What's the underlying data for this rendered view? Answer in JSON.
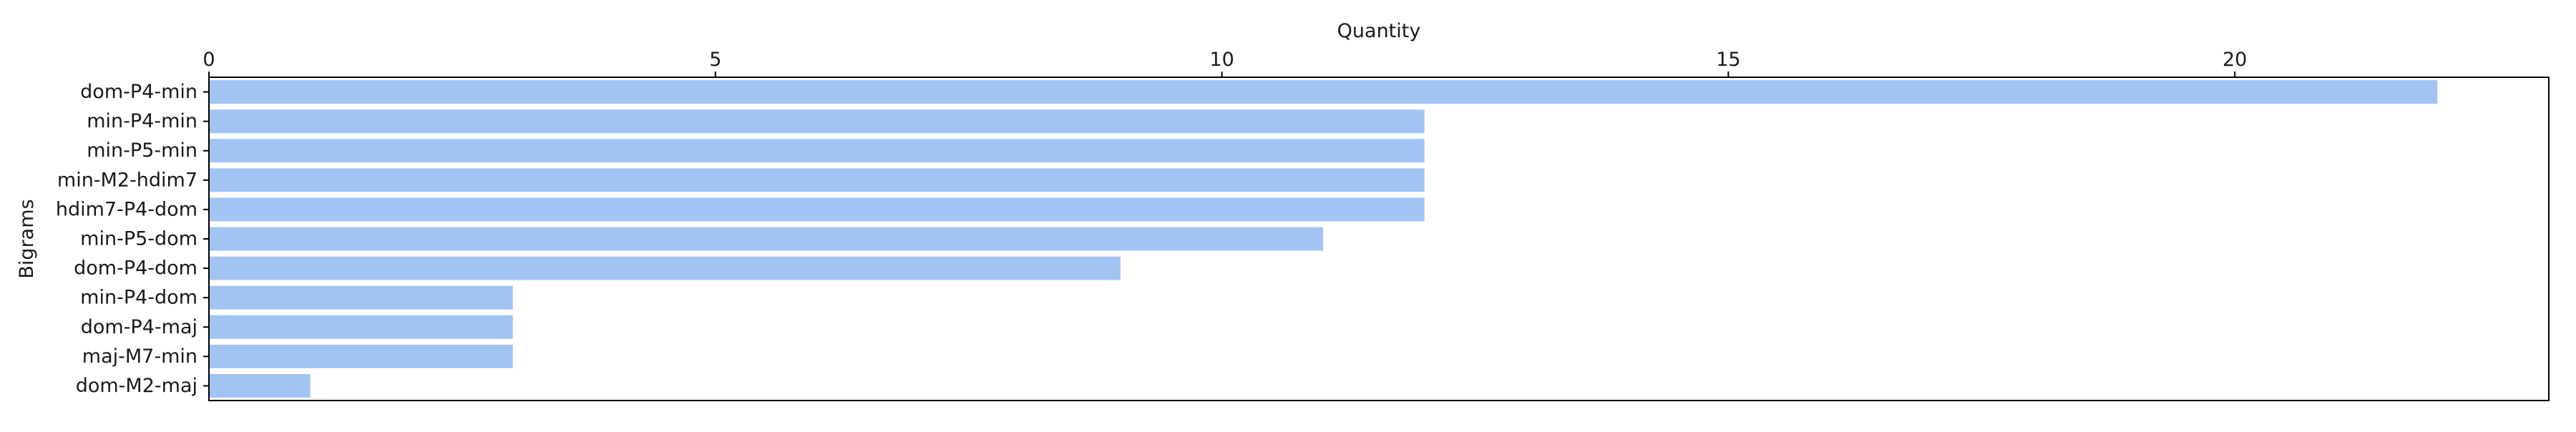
{
  "chart_data": {
    "type": "bar",
    "orientation": "horizontal",
    "title": "",
    "xlabel": "Quantity",
    "ylabel": "Bigrams",
    "xlim": [
      0,
      23.1
    ],
    "xticks": [
      0,
      5,
      10,
      15,
      20
    ],
    "x_axis_position": "top",
    "grid": false,
    "legend": "none",
    "bar_color": "#a1c4f2",
    "categories": [
      "dom-P4-min",
      "min-P4-min",
      "min-P5-min",
      "min-M2-hdim7",
      "hdim7-P4-dom",
      "min-P5-dom",
      "dom-P4-dom",
      "min-P4-dom",
      "dom-P4-maj",
      "maj-M7-min",
      "dom-M2-maj"
    ],
    "values": [
      22,
      12,
      12,
      12,
      12,
      11,
      9,
      3,
      3,
      3,
      1
    ]
  }
}
